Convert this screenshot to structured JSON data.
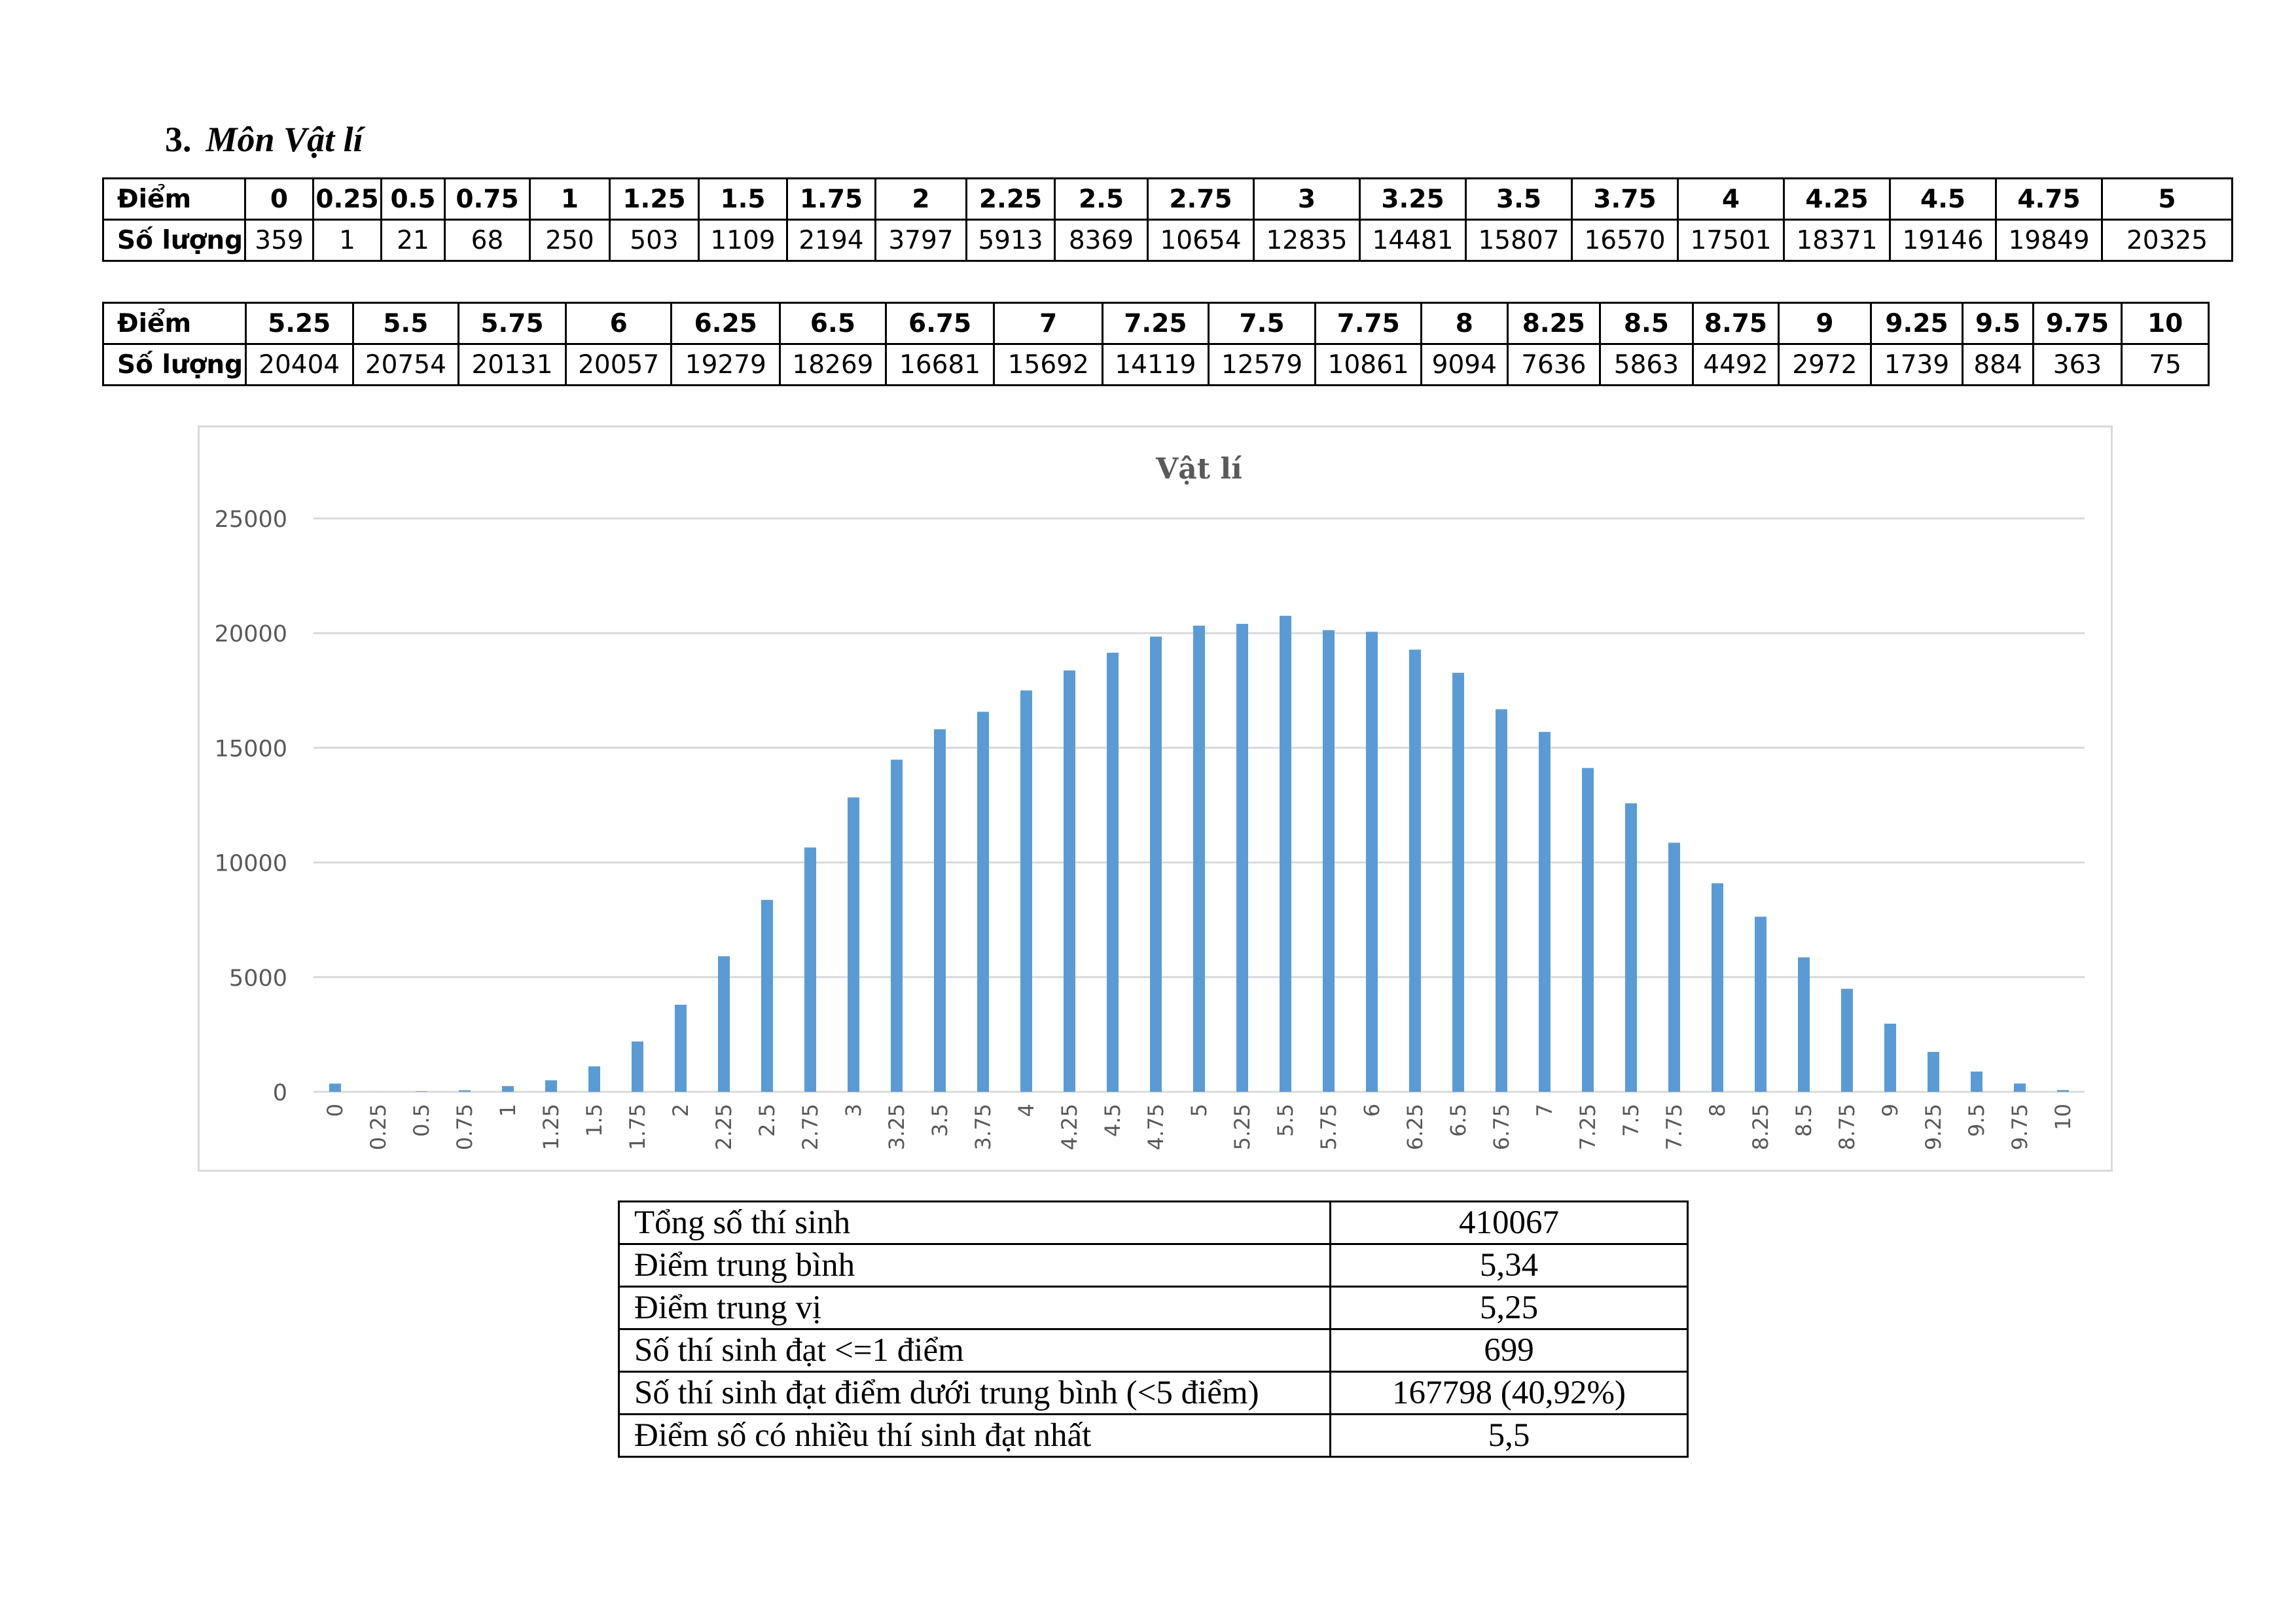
{
  "heading": {
    "number": "3.",
    "title": "Môn Vật lí"
  },
  "table1": {
    "row_labels": [
      "Điểm",
      "Số lượng"
    ],
    "scores": [
      "0",
      "0.25",
      "0.5",
      "0.75",
      "1",
      "1.25",
      "1.5",
      "1.75",
      "2",
      "2.25",
      "2.5",
      "2.75",
      "3",
      "3.25",
      "3.5",
      "3.75",
      "4",
      "4.25",
      "4.5",
      "4.75",
      "5"
    ],
    "counts": [
      "359",
      "1",
      "21",
      "68",
      "250",
      "503",
      "1109",
      "2194",
      "3797",
      "5913",
      "8369",
      "10654",
      "12835",
      "14481",
      "15807",
      "16570",
      "17501",
      "18371",
      "19146",
      "19849",
      "20325"
    ]
  },
  "table2": {
    "row_labels": [
      "Điểm",
      "Số lượng"
    ],
    "scores": [
      "5.25",
      "5.5",
      "5.75",
      "6",
      "6.25",
      "6.5",
      "6.75",
      "7",
      "7.25",
      "7.5",
      "7.75",
      "8",
      "8.25",
      "8.5",
      "8.75",
      "9",
      "9.25",
      "9.5",
      "9.75",
      "10"
    ],
    "counts": [
      "20404",
      "20754",
      "20131",
      "20057",
      "19279",
      "18269",
      "16681",
      "15692",
      "14119",
      "12579",
      "10861",
      "9094",
      "7636",
      "5863",
      "4492",
      "2972",
      "1739",
      "884",
      "363",
      "75"
    ]
  },
  "chart_data": {
    "type": "bar",
    "title": "Vật lí",
    "categories": [
      "0",
      "0.25",
      "0.5",
      "0.75",
      "1",
      "1.25",
      "1.5",
      "1.75",
      "2",
      "2.25",
      "2.5",
      "2.75",
      "3",
      "3.25",
      "3.5",
      "3.75",
      "4",
      "4.25",
      "4.5",
      "4.75",
      "5",
      "5.25",
      "5.5",
      "5.75",
      "6",
      "6.25",
      "6.5",
      "6.75",
      "7",
      "7.25",
      "7.5",
      "7.75",
      "8",
      "8.25",
      "8.5",
      "8.75",
      "9",
      "9.25",
      "9.5",
      "9.75",
      "10"
    ],
    "values": [
      359,
      1,
      21,
      68,
      250,
      503,
      1109,
      2194,
      3797,
      5913,
      8369,
      10654,
      12835,
      14481,
      15807,
      16570,
      17501,
      18371,
      19146,
      19849,
      20325,
      20404,
      20754,
      20131,
      20057,
      19279,
      18269,
      16681,
      15692,
      14119,
      12579,
      10861,
      9094,
      7636,
      5863,
      4492,
      2972,
      1739,
      884,
      363,
      75
    ],
    "yticks": [
      "0",
      "5000",
      "10000",
      "15000",
      "20000",
      "25000"
    ],
    "ylim": [
      0,
      25000
    ],
    "xlabel": "",
    "ylabel": "",
    "grid": true,
    "legend": "none",
    "bar_color": "#5b9bd5",
    "grid_color": "#d9d9d9"
  },
  "stats": [
    {
      "label": "Tổng số thí sinh",
      "value": "410067"
    },
    {
      "label": "Điểm trung bình",
      "value": "5,34"
    },
    {
      "label": "Điểm trung vị",
      "value": "5,25"
    },
    {
      "label": "Số thí sinh đạt <=1 điểm",
      "value": "699"
    },
    {
      "label": "Số thí sinh đạt điểm dưới trung bình (<5 điểm)",
      "value": "167798 (40,92%)"
    },
    {
      "label": "Điểm số có nhiều thí sinh đạt nhất",
      "value": "5,5"
    }
  ]
}
